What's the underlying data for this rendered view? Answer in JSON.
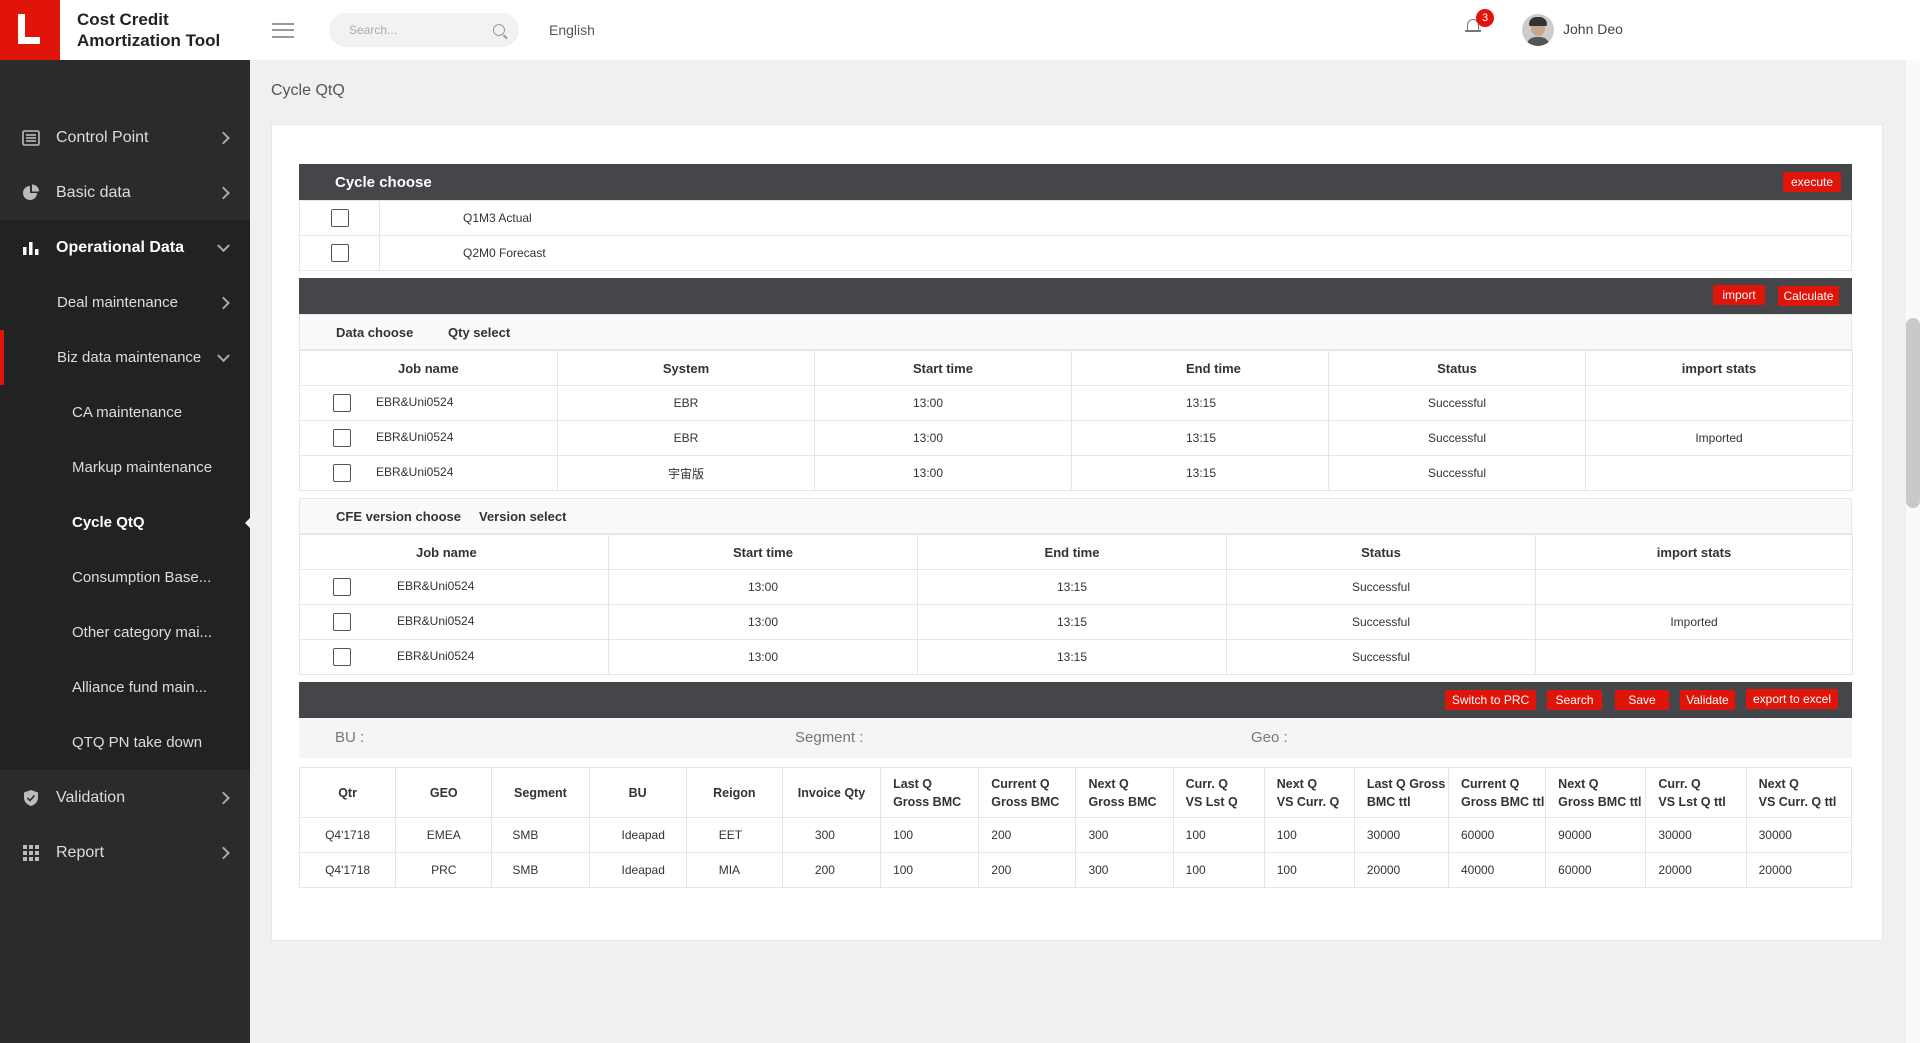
{
  "app": {
    "title_line1": "Cost Credit",
    "title_line2": "Amortization Tool"
  },
  "topbar": {
    "search_placeholder": "Search...",
    "language": "English",
    "notification_count": "3",
    "user_name": "John Deo"
  },
  "sidebar": {
    "items": [
      {
        "label": "Control Point",
        "icon": "list-icon"
      },
      {
        "label": "Basic data",
        "icon": "pie-chart-icon"
      },
      {
        "label": "Operational Data",
        "icon": "bar-chart-icon"
      },
      {
        "label": "Deal maintenance"
      },
      {
        "label": "Biz data maintenance"
      },
      {
        "label": "CA maintenance"
      },
      {
        "label": "Markup maintenance"
      },
      {
        "label": "Cycle QtQ"
      },
      {
        "label": "Consumption Base..."
      },
      {
        "label": "Other category mai..."
      },
      {
        "label": "Alliance fund main..."
      },
      {
        "label": "QTQ PN take down"
      },
      {
        "label": "Validation",
        "icon": "shield-icon"
      },
      {
        "label": "Report",
        "icon": "grid-icon"
      }
    ]
  },
  "page": {
    "title": "Cycle QtQ"
  },
  "cycle": {
    "title": "Cycle choose",
    "execute_label": "execute",
    "options": [
      "Q1M3 Actual",
      "Q2M0 Forecast"
    ]
  },
  "data_section": {
    "import_label": "import",
    "calculate_label": "Calculate",
    "data_choose": "Data choose",
    "qty_select": "Qty select",
    "headers": [
      "Job name",
      "System",
      "Start time",
      "End time",
      "Status",
      "import stats"
    ],
    "rows": [
      [
        "EBR&Uni0524",
        "EBR",
        "13:00",
        "13:15",
        "Successful",
        ""
      ],
      [
        "EBR&Uni0524",
        "EBR",
        "13:00",
        "13:15",
        "Successful",
        "Imported"
      ],
      [
        "EBR&Uni0524",
        "宇宙版",
        "13:00",
        "13:15",
        "Successful",
        ""
      ]
    ]
  },
  "cfe_section": {
    "cfe_choose": "CFE version choose",
    "version_select": "Version select",
    "headers": [
      "Job name",
      "Start time",
      "End time",
      "Status",
      "import stats"
    ],
    "rows": [
      [
        "EBR&Uni0524",
        "13:00",
        "13:15",
        "Successful",
        ""
      ],
      [
        "EBR&Uni0524",
        "13:00",
        "13:15",
        "Successful",
        "Imported"
      ],
      [
        "EBR&Uni0524",
        "13:00",
        "13:15",
        "Successful",
        ""
      ]
    ]
  },
  "actions": {
    "switch_label": "Switch to PRC",
    "search_label": "Search",
    "save_label": "Save",
    "validate_label": "Validate",
    "export_label": "export to excel"
  },
  "filters": {
    "bu": "BU :",
    "segment": "Segment :",
    "geo": "Geo :"
  },
  "result": {
    "headers": [
      [
        "Qtr"
      ],
      [
        "GEO"
      ],
      [
        "Segment"
      ],
      [
        "BU"
      ],
      [
        "Reigon"
      ],
      [
        "Invoice Qty"
      ],
      [
        "Last Q",
        "Gross BMC"
      ],
      [
        "Current Q",
        "Gross BMC"
      ],
      [
        "Next Q",
        "Gross BMC"
      ],
      [
        "Curr. Q",
        "VS Lst Q"
      ],
      [
        "Next Q",
        "VS Curr. Q"
      ],
      [
        "Last Q Gross",
        "BMC ttl"
      ],
      [
        "Current Q",
        "Gross BMC ttl"
      ],
      [
        "Next Q",
        "Gross BMC ttl"
      ],
      [
        "Curr. Q",
        "VS Lst Q ttl"
      ],
      [
        "Next Q",
        "VS Curr. Q ttl"
      ]
    ],
    "rows": [
      [
        "Q4'1718",
        "EMEA",
        "SMB",
        "Ideapad",
        "EET",
        "300",
        "100",
        "200",
        "300",
        "100",
        "100",
        "30000",
        "60000",
        "90000",
        "30000",
        "30000"
      ],
      [
        "Q4'1718",
        "PRC",
        "SMB",
        "Ideapad",
        "MIA",
        "200",
        "100",
        "200",
        "300",
        "100",
        "100",
        "20000",
        "40000",
        "60000",
        "20000",
        "20000"
      ]
    ]
  },
  "colors": {
    "accent": "#e1140a",
    "sidebar": "#2b2b2b",
    "bar": "#444649"
  }
}
